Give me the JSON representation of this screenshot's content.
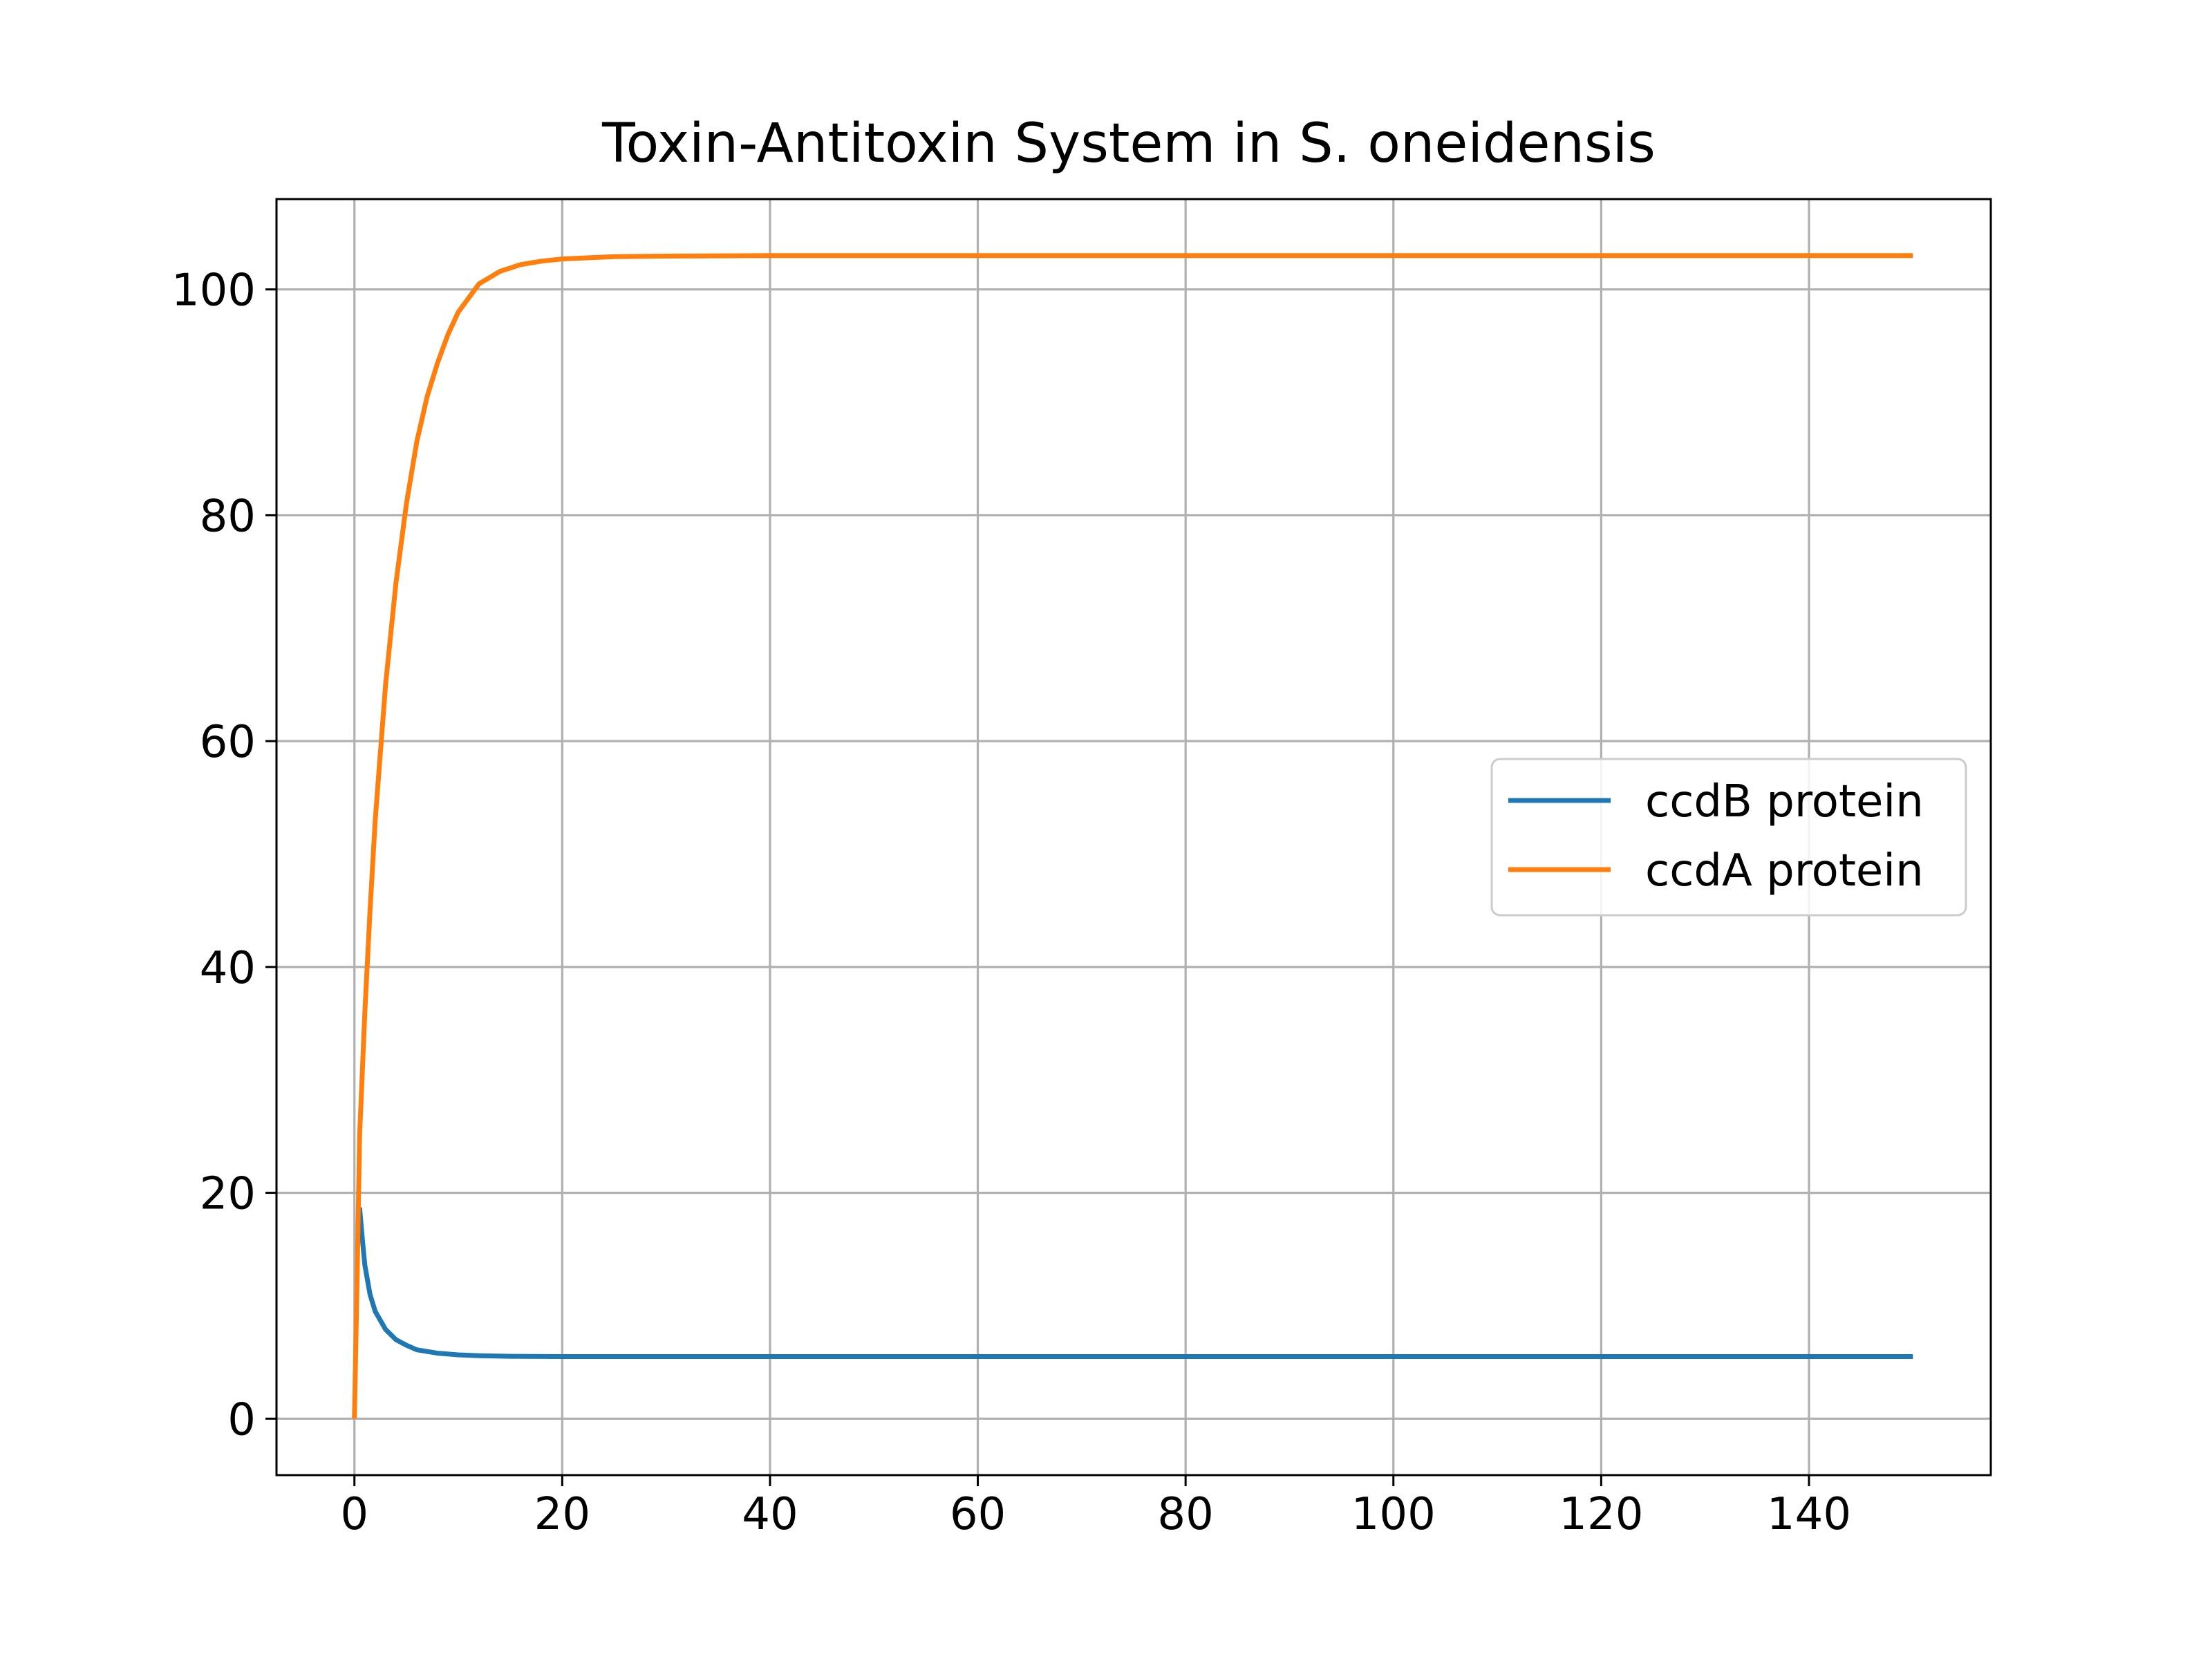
{
  "chart_data": {
    "type": "line",
    "title": "Toxin-Antitoxin System in S. oneidensis",
    "xlabel": "",
    "ylabel": "",
    "xlim": [
      -7.5,
      157.5
    ],
    "ylim": [
      -5,
      108
    ],
    "x_ticks": [
      0,
      20,
      40,
      60,
      80,
      100,
      120,
      140
    ],
    "y_ticks": [
      0,
      20,
      40,
      60,
      80,
      100
    ],
    "grid": true,
    "legend_position": "center-right",
    "series": [
      {
        "name": "ccdB protein",
        "color": "#1f77b4",
        "x": [
          0.5,
          0.8,
          1,
          1.5,
          2,
          3,
          4,
          5,
          6,
          8,
          10,
          12,
          15,
          20,
          30,
          50,
          80,
          110,
          150
        ],
        "y": [
          18.7,
          15.5,
          13.6,
          11.0,
          9.5,
          7.9,
          7.0,
          6.5,
          6.1,
          5.8,
          5.65,
          5.58,
          5.52,
          5.5,
          5.5,
          5.5,
          5.5,
          5.5,
          5.5
        ]
      },
      {
        "name": "ccdA protein",
        "color": "#ff7f0e",
        "x": [
          0,
          0.25,
          0.5,
          1,
          1.5,
          2,
          3,
          4,
          5,
          6,
          7,
          8,
          9,
          10,
          12,
          14,
          16,
          18,
          20,
          25,
          30,
          40,
          60,
          100,
          150
        ],
        "y": [
          0,
          12,
          25,
          36,
          45,
          53,
          65,
          74,
          81,
          86.5,
          90.5,
          93.5,
          96,
          98,
          100.5,
          101.6,
          102.2,
          102.5,
          102.7,
          102.9,
          102.95,
          103,
          103,
          103,
          103
        ]
      }
    ]
  }
}
